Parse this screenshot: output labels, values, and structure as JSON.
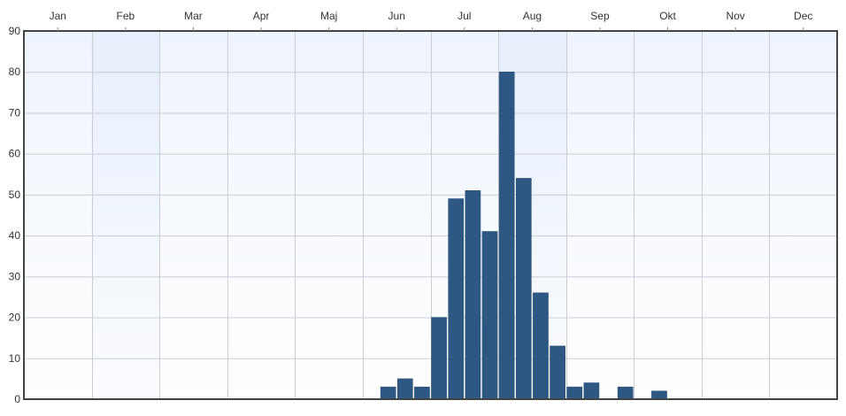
{
  "chart_data": {
    "type": "bar",
    "title": "",
    "xlabel": "",
    "ylabel": "",
    "month_labels": [
      "Jan",
      "Feb",
      "Mar",
      "Apr",
      "Maj",
      "Jun",
      "Jul",
      "Aug",
      "Sep",
      "Okt",
      "Nov",
      "Dec"
    ],
    "y_ticks": [
      0,
      10,
      20,
      30,
      40,
      50,
      60,
      70,
      80,
      90
    ],
    "ylim": [
      0,
      90
    ],
    "xlim_weeks": [
      1,
      48
    ],
    "grid": true,
    "legend": "none",
    "bar_color": "#2e5884",
    "series": [
      {
        "week": [
          22,
          23,
          24,
          25,
          26,
          27,
          28,
          29,
          30,
          31,
          32,
          33,
          34,
          35,
          36,
          37,
          38,
          39,
          40
        ],
        "values": [
          3,
          5,
          3,
          20,
          49,
          51,
          41,
          80,
          54,
          26,
          13,
          3,
          4,
          0,
          3,
          0,
          2,
          0,
          0
        ]
      }
    ]
  }
}
